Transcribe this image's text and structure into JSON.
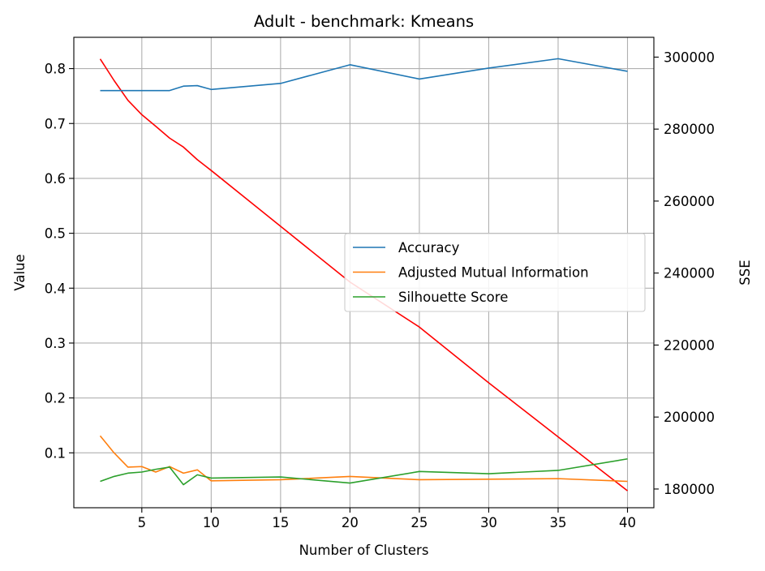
{
  "chart_data": {
    "type": "line",
    "title": "Adult - benchmark: Kmeans",
    "xlabel": "Number of Clusters",
    "ylabel": "Value",
    "ylabel_right": "SSE",
    "xlim": [
      0.1,
      41.9
    ],
    "ylim": [
      0.0,
      0.857
    ],
    "ylim_right": [
      174800,
      305500
    ],
    "x_ticks": [
      5,
      10,
      15,
      20,
      25,
      30,
      35,
      40
    ],
    "y_ticks": [
      0.1,
      0.2,
      0.3,
      0.4,
      0.5,
      0.6,
      0.7,
      0.8
    ],
    "y_ticks_right": [
      180000,
      200000,
      220000,
      240000,
      260000,
      280000,
      300000
    ],
    "grid": true,
    "legend_position": "center-right",
    "x": [
      2,
      3,
      4,
      5,
      6,
      7,
      8,
      9,
      10,
      15,
      20,
      25,
      30,
      35,
      40
    ],
    "series": [
      {
        "name": "Accuracy",
        "color": "#1f77b4",
        "axis": "left",
        "values": [
          0.76,
          0.76,
          0.76,
          0.76,
          0.76,
          0.76,
          0.768,
          0.769,
          0.762,
          0.773,
          0.807,
          0.781,
          0.801,
          0.818,
          0.795
        ]
      },
      {
        "name": "Adjusted Mutual Information",
        "color": "#ff7f0e",
        "axis": "left",
        "values": [
          0.131,
          0.1,
          0.074,
          0.075,
          0.065,
          0.075,
          0.063,
          0.069,
          0.049,
          0.051,
          0.057,
          0.051,
          0.052,
          0.053,
          0.048
        ]
      },
      {
        "name": "Silhouette Score",
        "color": "#2ca02c",
        "axis": "left",
        "values": [
          0.048,
          0.057,
          0.063,
          0.065,
          0.07,
          0.074,
          0.042,
          0.06,
          0.054,
          0.056,
          0.045,
          0.066,
          0.062,
          0.068,
          0.089
        ]
      },
      {
        "color": "#ff0000",
        "axis": "right",
        "values": [
          299500,
          293500,
          288000,
          284000,
          280800,
          277500,
          275000,
          271500,
          268500,
          253000,
          237500,
          225000,
          209500,
          194500,
          179500
        ]
      }
    ]
  }
}
